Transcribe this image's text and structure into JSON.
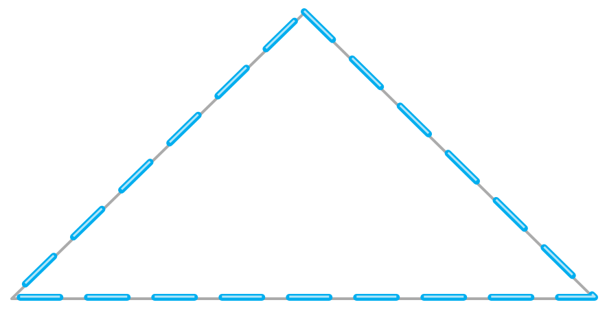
{
  "shape": {
    "type": "triangle",
    "outline_style": "dashed",
    "colors": {
      "background": "#ffffff",
      "fill": "#ffffff",
      "shadow_line": "#8f8f8f",
      "dash_primary": "#00aeef",
      "dash_highlight": "#cfeefa"
    }
  }
}
